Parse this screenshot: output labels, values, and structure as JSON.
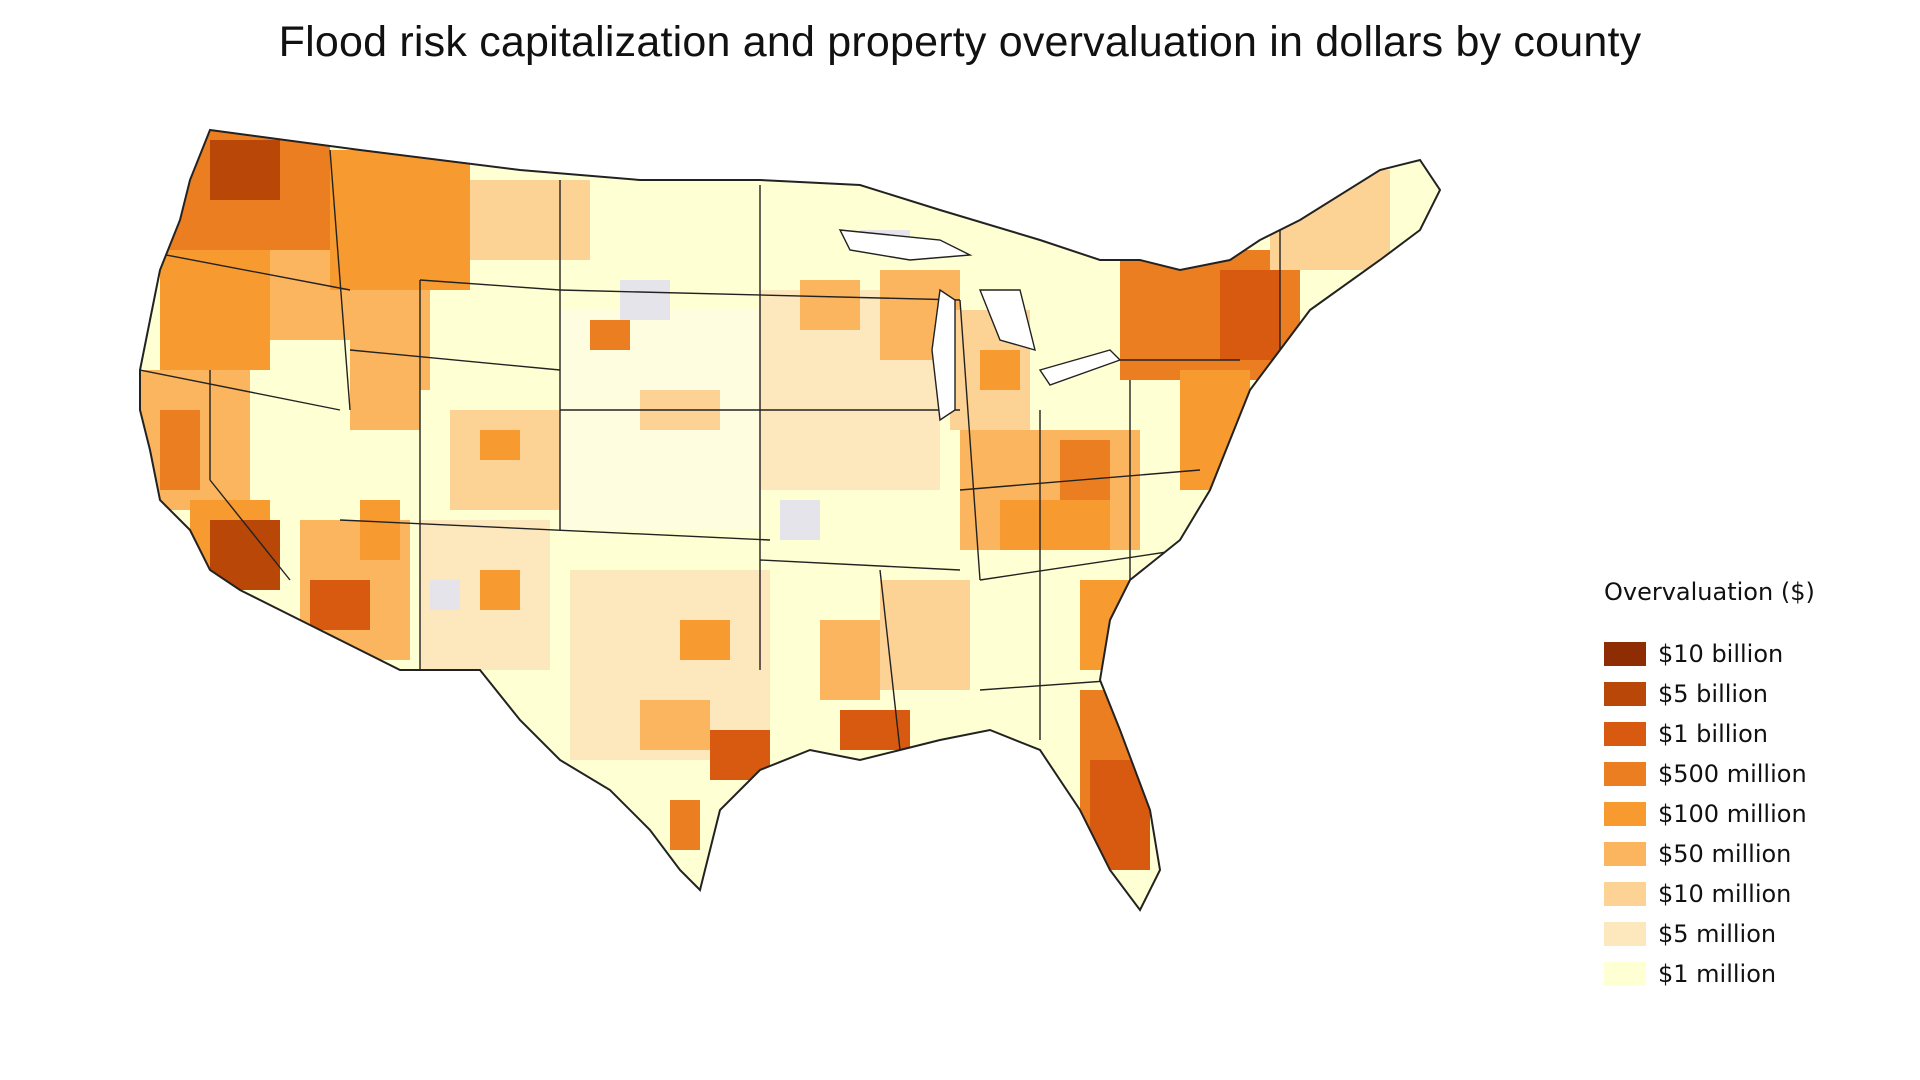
{
  "title": "Flood risk capitalization and property overvaluation in dollars by county",
  "legend": {
    "title": "Overvaluation ($)",
    "items": [
      {
        "label": "$10 billion",
        "color": "#8e2d04"
      },
      {
        "label": "$5 billion",
        "color": "#b84708"
      },
      {
        "label": "$1 billion",
        "color": "#d85a10"
      },
      {
        "label": "$500 million",
        "color": "#ec7e22"
      },
      {
        "label": "$100 million",
        "color": "#f79a30"
      },
      {
        "label": "$50 million",
        "color": "#fbb55e"
      },
      {
        "label": "$10 million",
        "color": "#fdd395"
      },
      {
        "label": "$5 million",
        "color": "#fde7bd"
      },
      {
        "label": "$1 million",
        "color": "#ffffd4"
      }
    ]
  },
  "colors": {
    "no_data": "#e4e4ea",
    "border": "#222222",
    "background": "#ffffff"
  }
}
